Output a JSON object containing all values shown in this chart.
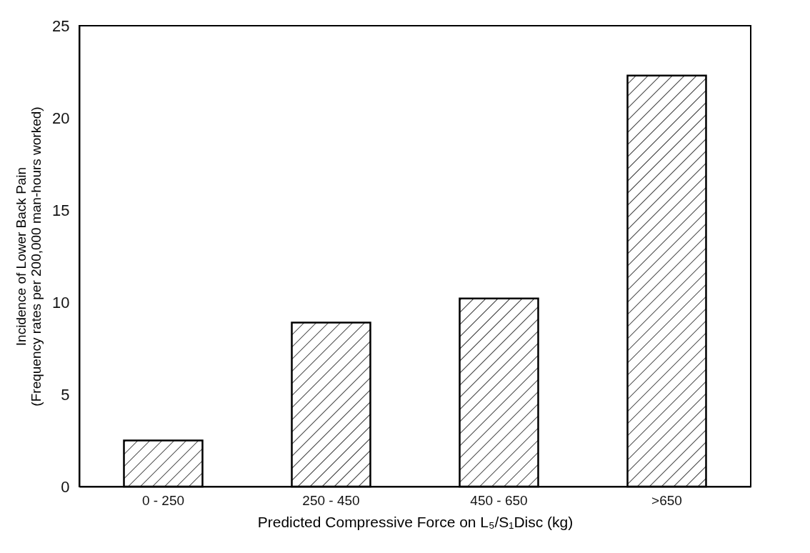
{
  "chart_data": {
    "type": "bar",
    "xlabel": "Predicted Compressive Force on L₅/S₁Disc (kg)",
    "ylabel": "Incidence of Lower Back Pain\n(Frequency rates per 200,000 man-hours worked)",
    "categories": [
      "0 - 250",
      "250 - 450",
      "450 - 650",
      ">650"
    ],
    "values": [
      2.5,
      8.9,
      10.2,
      22.3
    ],
    "color": "#000000",
    "ylim": [
      0,
      25
    ],
    "yticks": [
      0,
      5,
      10,
      15,
      20,
      25
    ],
    "grid": false
  }
}
